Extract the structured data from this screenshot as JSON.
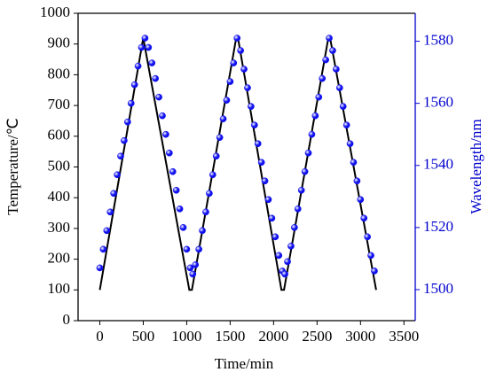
{
  "chart_data": {
    "type": "dual-axis-line-scatter",
    "xlabel": "Time/min",
    "ylabel": "Temperature/℃",
    "y2label": "Wavelength/nm",
    "xlim": [
      -250,
      3630
    ],
    "xticks": [
      0,
      500,
      1000,
      1500,
      2000,
      2500,
      3000,
      3500
    ],
    "ylim": [
      0,
      1000
    ],
    "yticks": [
      0,
      100,
      200,
      300,
      400,
      500,
      600,
      700,
      800,
      900,
      1000
    ],
    "y2lim": [
      1490,
      1589
    ],
    "y2ticks": [
      1500,
      1520,
      1540,
      1560,
      1580
    ],
    "axis_color": "#0000cc",
    "series": [
      {
        "kind": "line",
        "color": "#000000",
        "x": [
          0,
          500,
          1030,
          1060,
          1570,
          1590,
          2090,
          2120,
          2630,
          2650,
          3180
        ],
        "values": [
          100,
          920,
          100,
          100,
          920,
          920,
          100,
          100,
          920,
          920,
          100
        ]
      },
      {
        "kind": "scatter",
        "axis": "y2",
        "color": "#1010ee",
        "x": [
          0,
          40,
          80,
          120,
          160,
          200,
          240,
          280,
          320,
          360,
          400,
          440,
          480,
          520,
          560,
          600,
          640,
          680,
          720,
          760,
          800,
          840,
          880,
          920,
          960,
          1000,
          1040,
          1070,
          1100,
          1140,
          1180,
          1220,
          1260,
          1300,
          1340,
          1380,
          1420,
          1460,
          1500,
          1540,
          1580,
          1620,
          1660,
          1700,
          1740,
          1780,
          1820,
          1860,
          1900,
          1940,
          1980,
          2020,
          2060,
          2100,
          2130,
          2160,
          2200,
          2240,
          2280,
          2320,
          2360,
          2400,
          2440,
          2480,
          2520,
          2560,
          2600,
          2640,
          2680,
          2720,
          2760,
          2800,
          2840,
          2880,
          2920,
          2960,
          3000,
          3040,
          3080,
          3120,
          3160
        ],
        "values": [
          1507,
          1513,
          1519,
          1525,
          1531,
          1537,
          1543,
          1548,
          1554,
          1560,
          1566,
          1572,
          1578,
          1581,
          1578,
          1573,
          1568,
          1562,
          1556,
          1550,
          1544,
          1538,
          1532,
          1526,
          1520,
          1513,
          1507,
          1505,
          1508,
          1513,
          1519,
          1525,
          1531,
          1537,
          1543,
          1549,
          1555,
          1561,
          1567,
          1573,
          1581,
          1577,
          1571,
          1565,
          1559,
          1553,
          1547,
          1541,
          1535,
          1529,
          1523,
          1517,
          1511,
          1506,
          1505,
          1509,
          1514,
          1520,
          1526,
          1532,
          1538,
          1544,
          1550,
          1556,
          1562,
          1568,
          1574,
          1581,
          1577,
          1571,
          1565,
          1559,
          1553,
          1547,
          1541,
          1535,
          1529,
          1523,
          1517,
          1511,
          1506
        ]
      }
    ]
  }
}
